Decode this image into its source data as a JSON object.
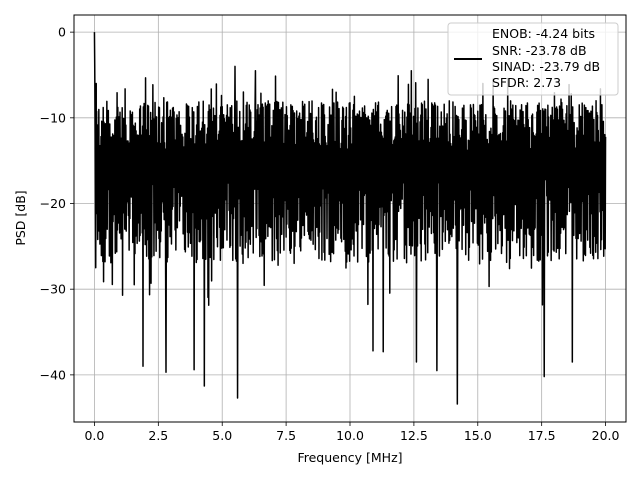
{
  "chart_data": {
    "type": "line",
    "title": "",
    "xlabel": "Frequency [MHz]",
    "ylabel": "PSD [dB]",
    "xlim": [
      -0.8,
      20.8
    ],
    "ylim": [
      -45.5,
      2.0
    ],
    "x_ticks": [
      0.0,
      2.5,
      5.0,
      7.5,
      10.0,
      12.5,
      15.0,
      17.5,
      20.0
    ],
    "x_tick_labels": [
      "0.0",
      "2.5",
      "5.0",
      "7.5",
      "10.0",
      "12.5",
      "15.0",
      "17.5",
      "20.0"
    ],
    "y_ticks": [
      0,
      -10,
      -20,
      -30,
      -40
    ],
    "y_tick_labels": [
      "0",
      "−10",
      "−20",
      "−30",
      "−40"
    ],
    "grid": true,
    "legend_position": "top-right",
    "legend_lines": [
      "ENOB: -4.24 bits",
      "SNR: -23.78 dB",
      "SINAD: -23.79 dB",
      "SFDR: 2.73"
    ],
    "series": [
      {
        "color": "#000000",
        "x_start": 0.0,
        "x_end": 20.0,
        "peak": {
          "x": 0.0,
          "y": 0.0
        },
        "typical_band": [
          -27,
          -8
        ],
        "envelope_top": [
          -12,
          -6
        ],
        "notable_dips": [
          {
            "x": 1.9,
            "y": -39.0
          },
          {
            "x": 2.8,
            "y": -39.7
          },
          {
            "x": 3.9,
            "y": -39.4
          },
          {
            "x": 4.3,
            "y": -41.3
          },
          {
            "x": 5.6,
            "y": -42.7
          },
          {
            "x": 10.9,
            "y": -37.2
          },
          {
            "x": 11.3,
            "y": -37.3
          },
          {
            "x": 12.6,
            "y": -38.5
          },
          {
            "x": 13.4,
            "y": -39.5
          },
          {
            "x": 14.2,
            "y": -43.4
          },
          {
            "x": 17.6,
            "y": -40.2
          },
          {
            "x": 18.7,
            "y": -38.5
          }
        ],
        "notable_peaks": [
          {
            "x": 5.5,
            "y": -4.0
          },
          {
            "x": 6.3,
            "y": -4.5
          },
          {
            "x": 12.4,
            "y": -4.5
          },
          {
            "x": 15.2,
            "y": -6.0
          },
          {
            "x": 15.6,
            "y": -5.5
          }
        ]
      }
    ]
  }
}
